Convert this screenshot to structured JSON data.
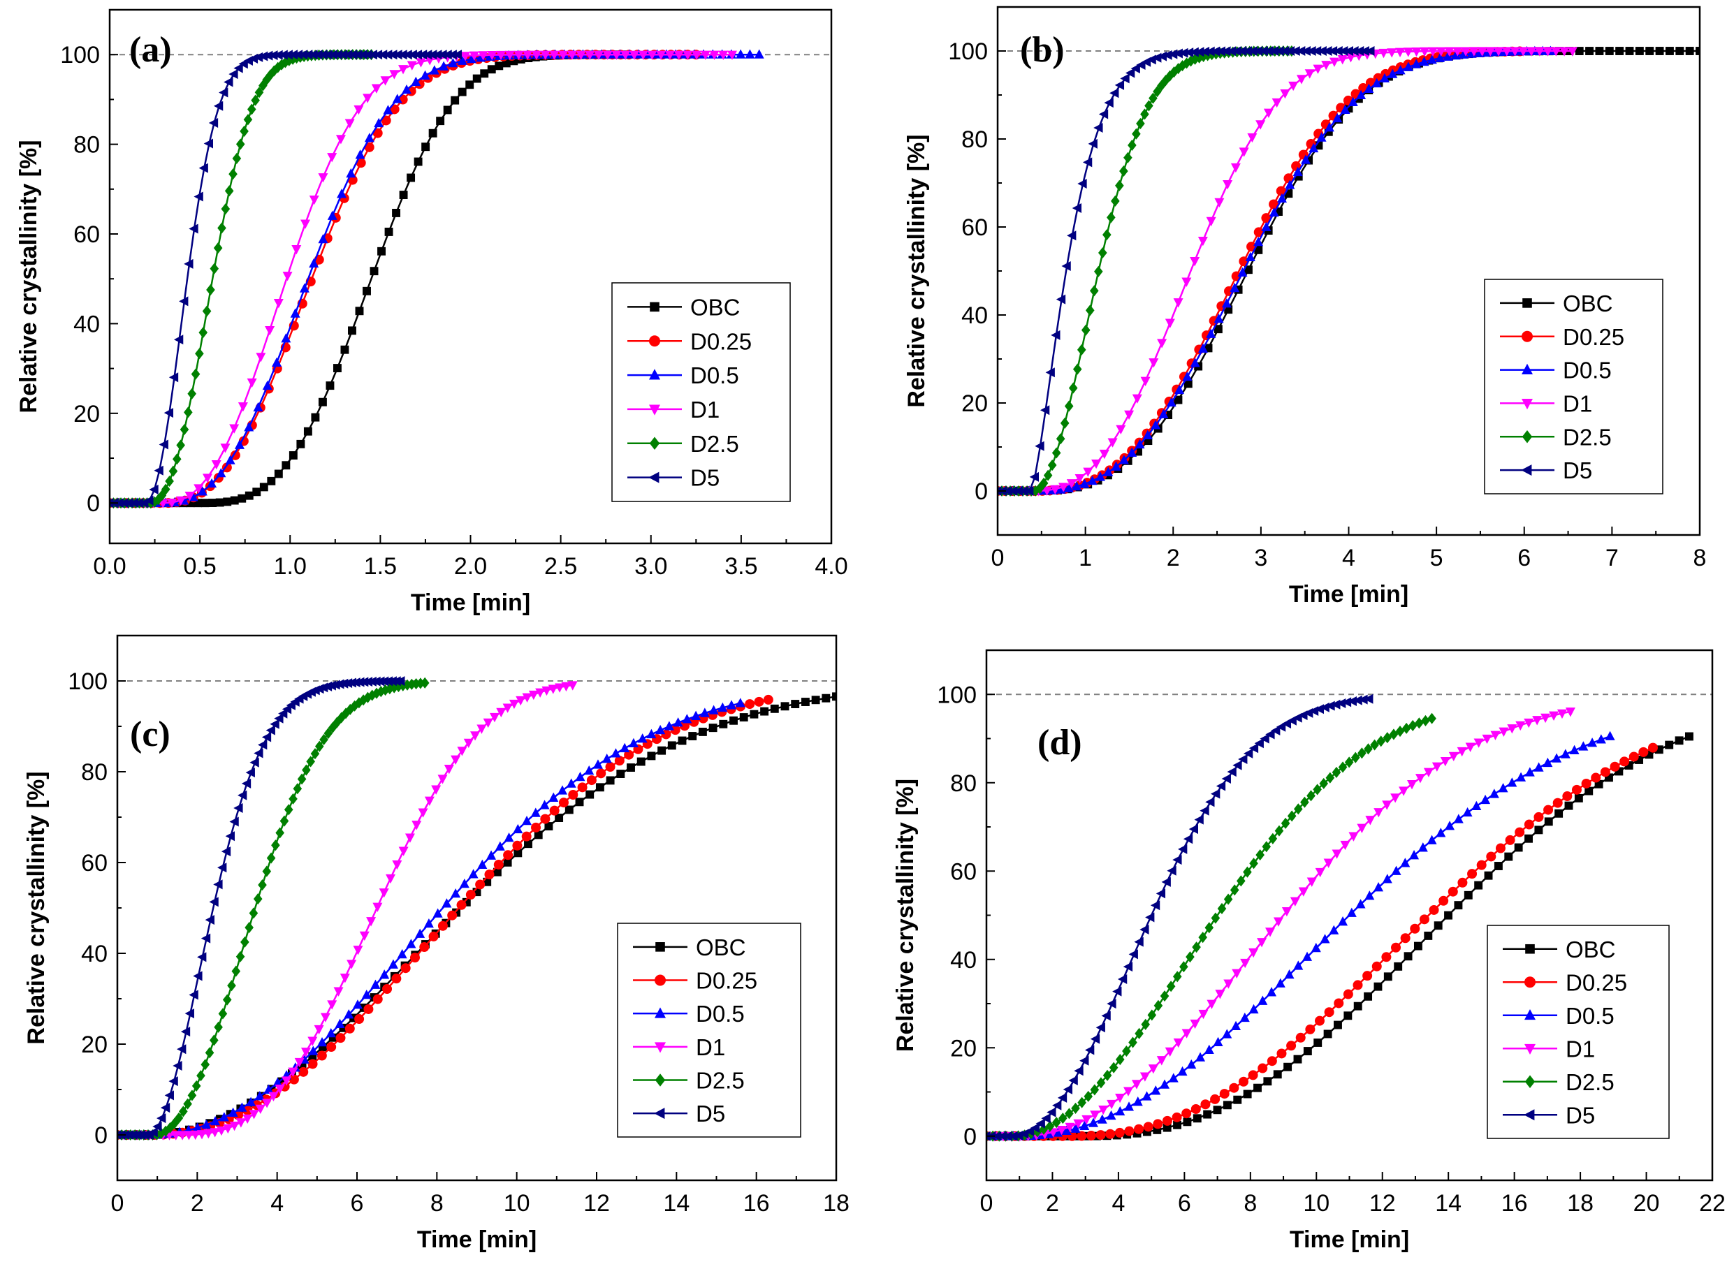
{
  "figure": {
    "description_text": "",
    "colors": {
      "OBC": "#000000",
      "D0.25": "#ff0000",
      "D0.5": "#0000ff",
      "D1": "#ff00ff",
      "D2.5": "#008000",
      "D5": "#000080",
      "reference_line": "#808080"
    }
  },
  "chart_data": [
    {
      "type": "line",
      "panel_label": "(a)",
      "xlabel": "Time [min]",
      "ylabel": "Relative crystallinity [%]",
      "xlim": [
        0.0,
        4.0
      ],
      "ylim": [
        -9,
        110
      ],
      "xticks": [
        0.0,
        0.5,
        1.0,
        1.5,
        2.0,
        2.5,
        3.0,
        3.5,
        4.0
      ],
      "xtick_labels": [
        "0.0",
        "0.5",
        "1.0",
        "1.5",
        "2.0",
        "2.5",
        "3.0",
        "3.5",
        "4.0"
      ],
      "yticks": [
        0,
        20,
        40,
        60,
        80,
        100
      ],
      "ytick_labels": [
        "0",
        "20",
        "40",
        "60",
        "80",
        "100"
      ],
      "reference_line_y": 100,
      "legend_position": "lower-right",
      "series": [
        {
          "name": "OBC",
          "marker": "square",
          "t_start": 0.5,
          "t_half": 1.45,
          "n": 3.0,
          "t_end": 2.85
        },
        {
          "name": "D0.25",
          "marker": "circle",
          "t_start": 0.3,
          "t_half": 1.12,
          "n": 2.5,
          "t_end": 3.25
        },
        {
          "name": "D0.5",
          "marker": "triangle-up",
          "t_start": 0.3,
          "t_half": 1.1,
          "n": 2.5,
          "t_end": 3.6
        },
        {
          "name": "D1",
          "marker": "triangle-down",
          "t_start": 0.3,
          "t_half": 0.98,
          "n": 2.4,
          "t_end": 3.45
        },
        {
          "name": "D2.5",
          "marker": "diamond",
          "t_start": 0.22,
          "t_half": 0.57,
          "n": 2.3,
          "t_end": 1.45
        },
        {
          "name": "D5",
          "marker": "triangle-left",
          "t_start": 0.2,
          "t_half": 0.43,
          "n": 2.0,
          "t_end": 1.93
        }
      ]
    },
    {
      "type": "line",
      "panel_label": "(b)",
      "xlabel": "Time [min]",
      "ylabel": "Relative crystallinity [%]",
      "xlim": [
        0,
        8
      ],
      "ylim": [
        -10,
        110
      ],
      "xticks": [
        0,
        1,
        2,
        3,
        4,
        5,
        6,
        7,
        8
      ],
      "xtick_labels": [
        "0",
        "1",
        "2",
        "3",
        "4",
        "5",
        "6",
        "7",
        "8"
      ],
      "yticks": [
        0,
        20,
        40,
        60,
        80,
        100
      ],
      "ytick_labels": [
        "0",
        "20",
        "40",
        "60",
        "80",
        "100"
      ],
      "reference_line_y": 100,
      "legend_position": "right",
      "series": [
        {
          "name": "OBC",
          "marker": "square",
          "t_start": 0.4,
          "t_half": 2.85,
          "n": 2.8,
          "t_end": 8.0
        },
        {
          "name": "D0.25",
          "marker": "circle",
          "t_start": 0.4,
          "t_half": 2.75,
          "n": 2.7,
          "t_end": 5.95
        },
        {
          "name": "D0.5",
          "marker": "triangle-up",
          "t_start": 0.4,
          "t_half": 2.8,
          "n": 2.7,
          "t_end": 6.3
        },
        {
          "name": "D1",
          "marker": "triangle-down",
          "t_start": 0.4,
          "t_half": 2.2,
          "n": 2.6,
          "t_end": 6.55
        },
        {
          "name": "D2.5",
          "marker": "diamond",
          "t_start": 0.42,
          "t_half": 1.15,
          "n": 1.9,
          "t_end": 3.35
        },
        {
          "name": "D5",
          "marker": "triangle-left",
          "t_start": 0.38,
          "t_half": 0.78,
          "n": 1.4,
          "t_end": 4.25
        }
      ]
    },
    {
      "type": "line",
      "panel_label": "(c)",
      "xlabel": "Time [min]",
      "ylabel": "Relative crystallinity [%]",
      "xlim": [
        0,
        18
      ],
      "ylim": [
        -10,
        110
      ],
      "xticks": [
        0,
        2,
        4,
        6,
        8,
        10,
        12,
        14,
        16,
        18
      ],
      "xtick_labels": [
        "0",
        "2",
        "4",
        "6",
        "8",
        "10",
        "12",
        "14",
        "16",
        "18"
      ],
      "yticks": [
        0,
        20,
        40,
        60,
        80,
        100
      ],
      "ytick_labels": [
        "0",
        "20",
        "40",
        "60",
        "80",
        "100"
      ],
      "reference_line_y": 100,
      "legend_position": "right",
      "series": [
        {
          "name": "OBC",
          "marker": "square",
          "t_start": 0.8,
          "t_half": 8.6,
          "n": 2.0,
          "t_end": 18.0
        },
        {
          "name": "D0.25",
          "marker": "circle",
          "t_start": 0.8,
          "t_half": 8.55,
          "n": 2.2,
          "t_end": 16.3
        },
        {
          "name": "D0.5",
          "marker": "triangle-up",
          "t_start": 0.8,
          "t_half": 8.15,
          "n": 2.1,
          "t_end": 15.6
        },
        {
          "name": "D1",
          "marker": "triangle-down",
          "t_start": 1.5,
          "t_half": 6.5,
          "n": 2.8,
          "t_end": 11.4
        },
        {
          "name": "D2.5",
          "marker": "diamond",
          "t_start": 0.9,
          "t_half": 3.45,
          "n": 2.1,
          "t_end": 7.7
        },
        {
          "name": "D5",
          "marker": "triangle-left",
          "t_start": 0.8,
          "t_half": 2.4,
          "n": 1.8,
          "t_end": 7.1
        }
      ]
    },
    {
      "type": "line",
      "panel_label": "(d)",
      "xlabel": "Time [min]",
      "ylabel": "Relative crystallinity [%]",
      "xlim": [
        0,
        22
      ],
      "ylim": [
        -10,
        110
      ],
      "xticks": [
        0,
        2,
        4,
        6,
        8,
        10,
        12,
        14,
        16,
        18,
        20,
        22
      ],
      "xtick_labels": [
        "0",
        "2",
        "4",
        "6",
        "8",
        "10",
        "12",
        "14",
        "16",
        "18",
        "20",
        "22"
      ],
      "yticks": [
        0,
        20,
        40,
        60,
        80,
        100
      ],
      "ytick_labels": [
        "0",
        "20",
        "40",
        "60",
        "80",
        "100"
      ],
      "reference_line_y": 100,
      "legend_position": "right",
      "series": [
        {
          "name": "OBC",
          "marker": "square",
          "t_start": 3.0,
          "t_half": 14.0,
          "n": 2.4,
          "t_end": 21.3
        },
        {
          "name": "D0.25",
          "marker": "circle",
          "t_start": 2.5,
          "t_half": 13.4,
          "n": 2.3,
          "t_end": 20.2
        },
        {
          "name": "D0.5",
          "marker": "triangle-up",
          "t_start": 1.0,
          "t_half": 11.0,
          "n": 2.1,
          "t_end": 18.9
        },
        {
          "name": "D1",
          "marker": "triangle-down",
          "t_start": 1.0,
          "t_half": 9.0,
          "n": 2.1,
          "t_end": 17.7
        },
        {
          "name": "D2.5",
          "marker": "diamond",
          "t_start": 0.8,
          "t_half": 7.0,
          "n": 2.0,
          "t_end": 13.5
        },
        {
          "name": "D5",
          "marker": "triangle-left",
          "t_start": 0.8,
          "t_half": 5.0,
          "n": 2.0,
          "t_end": 11.6
        }
      ]
    }
  ]
}
